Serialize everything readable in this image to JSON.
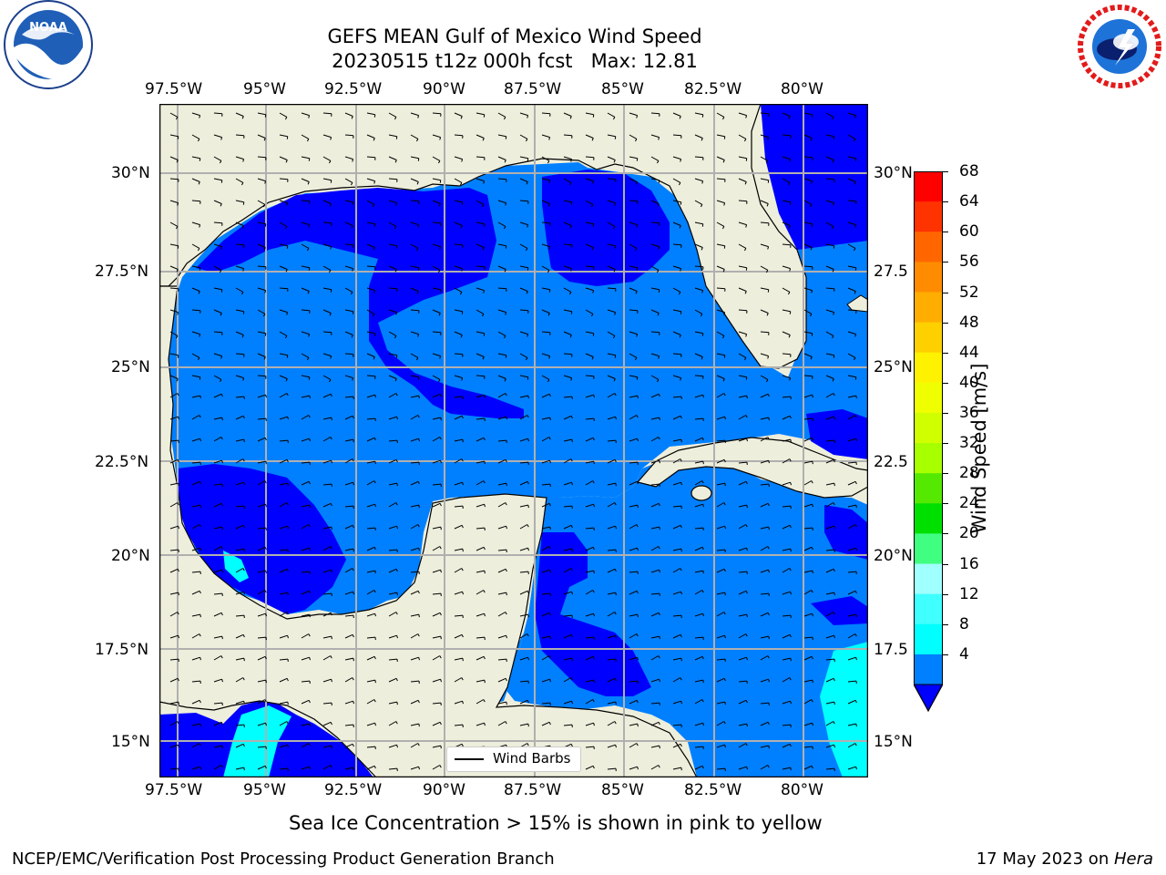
{
  "title": {
    "line1": "GEFS MEAN Gulf of Mexico Wind Speed",
    "line2": "20230515 t12z 000h fcst   Max: 12.81"
  },
  "lon_labels": [
    "97.5°W",
    "95°W",
    "92.5°W",
    "90°W",
    "87.5°W",
    "85°W",
    "82.5°W",
    "80°W"
  ],
  "lat_labels": [
    "30°N",
    "27.5°N",
    "25°N",
    "22.5°N",
    "20°N",
    "17.5°N",
    "15°N"
  ],
  "lat_labels_right": [
    "30°N",
    "27.5",
    "25°N",
    "22.5",
    "20°N",
    "17.5",
    "15°N"
  ],
  "legend": {
    "label": "Wind Barbs"
  },
  "colorbar": {
    "label": "Wind Speed [m/s]",
    "ticks": [
      "68",
      "64",
      "60",
      "56",
      "52",
      "48",
      "44",
      "40",
      "36",
      "32",
      "28",
      "24",
      "20",
      "16",
      "12",
      "8",
      "4"
    ],
    "colors": [
      "#ff0000",
      "#ff3300",
      "#ff6600",
      "#ff8c00",
      "#ffad00",
      "#ffd000",
      "#fff200",
      "#f0ff00",
      "#d0ff00",
      "#a8ff00",
      "#55e800",
      "#00e000",
      "#40ff80",
      "#a0ffff",
      "#40ffff",
      "#00ffff",
      "#0080ff"
    ],
    "under_color": "#0000ff"
  },
  "colors": {
    "land": "#eeeedc",
    "low_wind": "#0000ff",
    "mid_wind": "#0080ff",
    "high_wind": "#00ffff",
    "grid": "#b0b0b0"
  },
  "caption": "Sea Ice Concentration > 15% is shown in pink to yellow",
  "footer": {
    "left": "NCEP/EMC/Verification Post Processing Product Generation Branch",
    "right_date": "17 May 2023 on ",
    "right_host": "Hera"
  },
  "logos": {
    "noaa": "NOAA",
    "nws": "NATIONAL WEATHER SERVICE"
  }
}
